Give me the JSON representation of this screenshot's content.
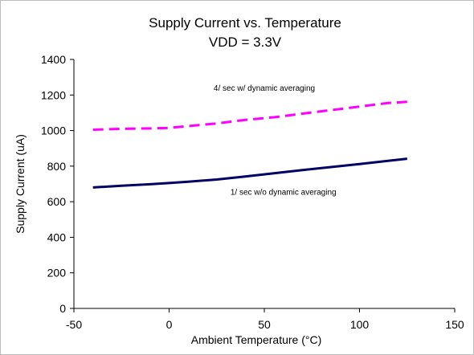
{
  "chart_data": {
    "type": "line",
    "title": "Supply Current vs. Temperature",
    "subtitle": "VDD = 3.3V",
    "xlabel": "Ambient Temperature (°C)",
    "ylabel": "Supply Current (uA)",
    "xlim": [
      -50,
      150
    ],
    "ylim": [
      0,
      1400
    ],
    "xticks": [
      -50,
      0,
      50,
      100,
      150
    ],
    "yticks": [
      0,
      200,
      400,
      600,
      800,
      1000,
      1200,
      1400
    ],
    "xtick_labels": [
      "-50",
      "0",
      "50",
      "100",
      "150"
    ],
    "ytick_labels": [
      "0",
      "200",
      "400",
      "600",
      "800",
      "1000",
      "1200",
      "1400"
    ],
    "grid": false,
    "legend": "none",
    "series": [
      {
        "name": "4/ sec w/ dynamic averaging",
        "color": "#ff00ff",
        "style": "dashed",
        "x": [
          -40,
          -25,
          -10,
          0,
          10,
          25,
          40,
          55,
          70,
          85,
          100,
          115,
          125
        ],
        "y": [
          1005,
          1010,
          1012,
          1015,
          1025,
          1040,
          1060,
          1075,
          1095,
          1115,
          1135,
          1155,
          1162
        ]
      },
      {
        "name": "1/ sec w/o dynamic averaging",
        "color": "#000066",
        "style": "solid",
        "x": [
          -40,
          -25,
          -10,
          0,
          10,
          25,
          40,
          55,
          70,
          85,
          100,
          115,
          125
        ],
        "y": [
          680,
          690,
          698,
          705,
          712,
          725,
          742,
          760,
          778,
          795,
          812,
          830,
          842
        ]
      }
    ],
    "annotations": [
      {
        "text": "4/ sec w/ dynamic averaging",
        "x": 50,
        "y": 1225
      },
      {
        "text": "1/ sec w/o dynamic averaging",
        "x": 60,
        "y": 640
      }
    ]
  }
}
